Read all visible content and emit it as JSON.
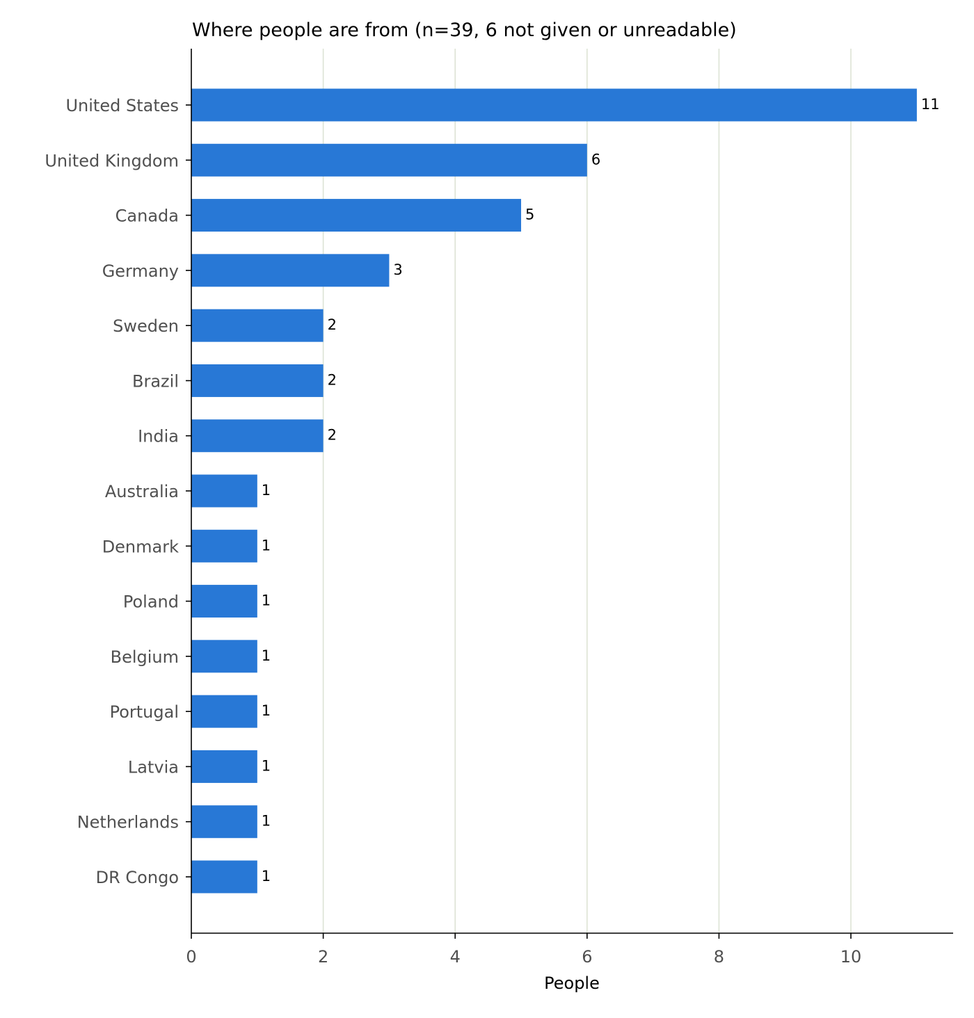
{
  "chart_data": {
    "type": "bar",
    "orientation": "horizontal",
    "title": "Where people are from (n=39, 6 not given or unreadable)",
    "xlabel": "People",
    "ylabel": "",
    "xlim": [
      0,
      11.55
    ],
    "xticks": [
      0,
      2,
      4,
      6,
      8,
      10
    ],
    "grid": "vertical",
    "categories": [
      "United States",
      "United Kingdom",
      "Canada",
      "Germany",
      "Sweden",
      "Brazil",
      "India",
      "Australia",
      "Denmark",
      "Poland",
      "Belgium",
      "Portugal",
      "Latvia",
      "Netherlands",
      "DR Congo"
    ],
    "values": [
      11,
      6,
      5,
      3,
      2,
      2,
      2,
      1,
      1,
      1,
      1,
      1,
      1,
      1,
      1
    ],
    "data_labels": [
      "11",
      "6",
      "5",
      "3",
      "2",
      "2",
      "2",
      "1",
      "1",
      "1",
      "1",
      "1",
      "1",
      "1",
      "1"
    ],
    "colors": {
      "bar": "#2878d6",
      "grid": "#dde3d5",
      "axis": "#000000",
      "tick_label": "#505050",
      "text": "#000000"
    }
  }
}
